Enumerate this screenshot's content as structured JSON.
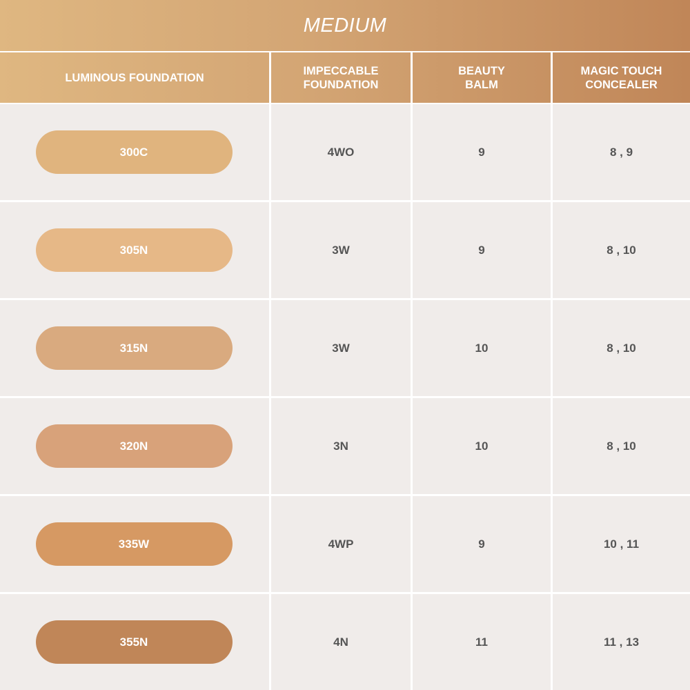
{
  "title": "MEDIUM",
  "headers": [
    "LUMINOUS FOUNDATION",
    "IMPECCABLE\nFOUNDATION",
    "BEAUTY\nBALM",
    "MAGIC TOUCH\nCONCEALER"
  ],
  "rows": [
    {
      "shade": "300C",
      "color": "#e0b47e",
      "impeccable": "4WO",
      "balm": "9",
      "concealer": "8 , 9"
    },
    {
      "shade": "305N",
      "color": "#e6b887",
      "impeccable": "3W",
      "balm": "9",
      "concealer": "8 , 10"
    },
    {
      "shade": "315N",
      "color": "#d9aa7f",
      "impeccable": "3W",
      "balm": "10",
      "concealer": "8 , 10"
    },
    {
      "shade": "320N",
      "color": "#d8a27a",
      "impeccable": "3N",
      "balm": "10",
      "concealer": "8 , 10"
    },
    {
      "shade": "335W",
      "color": "#d69963",
      "impeccable": "4WP",
      "balm": "9",
      "concealer": "10 , 11"
    },
    {
      "shade": "355N",
      "color": "#c08658",
      "impeccable": "4N",
      "balm": "11",
      "concealer": "11 , 13"
    }
  ]
}
